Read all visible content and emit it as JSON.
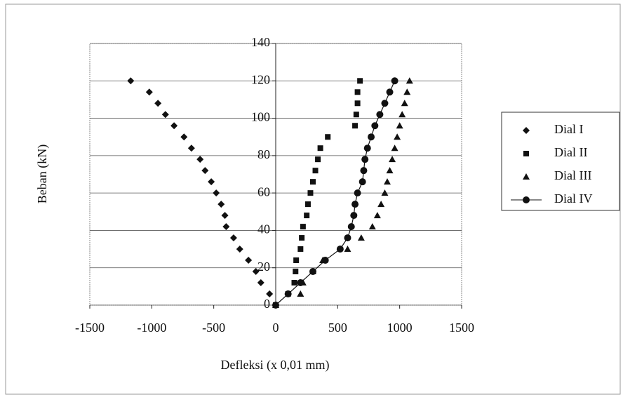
{
  "chart_data": {
    "type": "scatter",
    "x_label": "Defleksi (x 0,01 mm)",
    "y_label": "Beban (kN)",
    "xlim": [
      -1500,
      1500
    ],
    "xticks": [
      -1500,
      -1000,
      -500,
      0,
      500,
      1000,
      1500
    ],
    "ylim": [
      0,
      140
    ],
    "yticks": [
      0,
      20,
      40,
      60,
      80,
      100,
      120,
      140
    ],
    "grid": true,
    "legend": "right",
    "series": [
      {
        "name": "Dial I",
        "color": "#111111",
        "marker": "diamond",
        "line": false,
        "x": [
          0,
          -50,
          -120,
          -160,
          -220,
          -290,
          -340,
          -400,
          -410,
          -440,
          -480,
          -520,
          -570,
          -610,
          -680,
          -740,
          -820,
          -890,
          -950,
          -1020,
          -1170
        ],
        "values": [
          0,
          6,
          12,
          18,
          24,
          30,
          36,
          42,
          48,
          54,
          60,
          66,
          72,
          78,
          84,
          90,
          96,
          102,
          108,
          114,
          120
        ]
      },
      {
        "name": "Dial II",
        "color": "#111111",
        "marker": "square",
        "line": false,
        "x": [
          0,
          100,
          150,
          160,
          165,
          200,
          210,
          220,
          250,
          260,
          280,
          300,
          320,
          340,
          360,
          420,
          640,
          650,
          660,
          660,
          680
        ],
        "values": [
          0,
          6,
          12,
          18,
          24,
          30,
          36,
          42,
          48,
          54,
          60,
          66,
          72,
          78,
          84,
          90,
          96,
          102,
          108,
          114,
          120
        ]
      },
      {
        "name": "Dial III",
        "color": "#111111",
        "marker": "triangle",
        "line": false,
        "x": [
          0,
          200,
          220,
          300,
          380,
          580,
          690,
          780,
          820,
          850,
          880,
          900,
          920,
          940,
          960,
          980,
          1000,
          1020,
          1040,
          1060,
          1080
        ],
        "values": [
          0,
          6,
          12,
          18,
          24,
          30,
          36,
          42,
          48,
          54,
          60,
          66,
          72,
          78,
          84,
          90,
          96,
          102,
          108,
          114,
          120
        ]
      },
      {
        "name": "Dial IV",
        "color": "#111111",
        "marker": "circle",
        "line": true,
        "x": [
          0,
          100,
          200,
          300,
          400,
          520,
          580,
          610,
          630,
          640,
          660,
          700,
          710,
          720,
          740,
          770,
          800,
          840,
          880,
          920,
          960
        ],
        "values": [
          0,
          6,
          12,
          18,
          24,
          30,
          36,
          42,
          48,
          54,
          60,
          66,
          72,
          78,
          84,
          90,
          96,
          102,
          108,
          114,
          120
        ]
      }
    ]
  }
}
